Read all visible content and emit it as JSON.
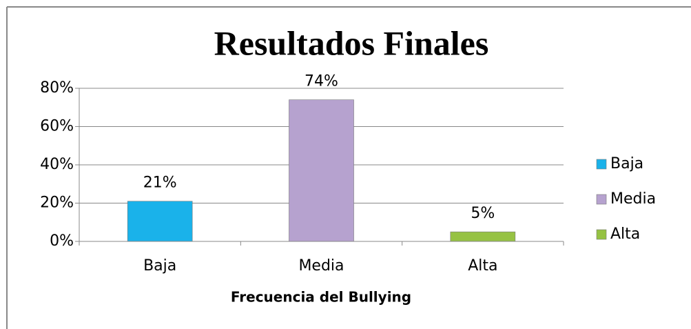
{
  "chart_data": {
    "type": "bar",
    "title": "Resultados Finales",
    "x_label": "Frecuencia del Bullying",
    "categories": [
      "Baja",
      "Media",
      "Alta"
    ],
    "values": [
      21,
      74,
      5
    ],
    "value_labels": [
      "21%",
      "74%",
      "5%"
    ],
    "colors": [
      "#1ab2ea",
      "#b6a2cf",
      "#96c243"
    ],
    "ylim": [
      0,
      80
    ],
    "yticks": [
      {
        "value": 0,
        "label": "0%"
      },
      {
        "value": 20,
        "label": "20%"
      },
      {
        "value": 40,
        "label": "40%"
      },
      {
        "value": 60,
        "label": "60%"
      },
      {
        "value": 80,
        "label": "80%"
      }
    ],
    "grid": true,
    "legend": "right"
  }
}
